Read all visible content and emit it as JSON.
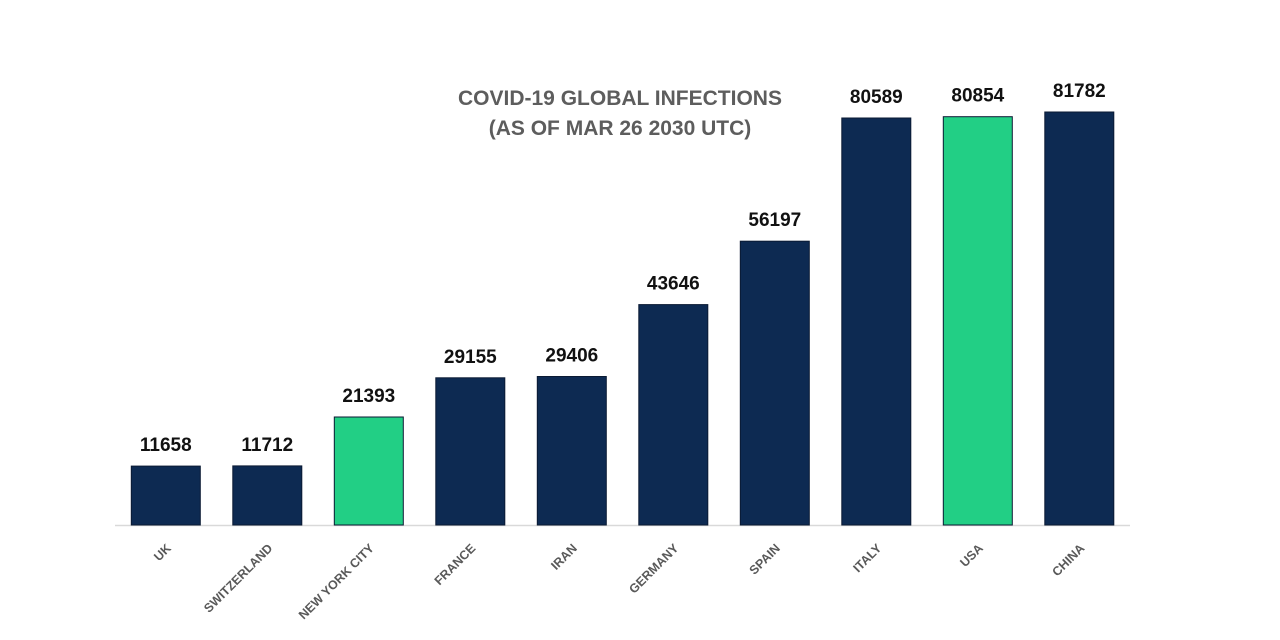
{
  "chart_data": {
    "type": "bar",
    "title": "COVID-19 GLOBAL INFECTIONS",
    "subtitle": "(AS OF MAR 26 2030 UTC)",
    "categories": [
      "UK",
      "SWITZERLAND",
      "NEW YORK CITY",
      "FRANCE",
      "IRAN",
      "GERMANY",
      "SPAIN",
      "ITALY",
      "USA",
      "CHINA"
    ],
    "values": [
      11658,
      11712,
      21393,
      29155,
      29406,
      43646,
      56197,
      80589,
      80854,
      81782
    ],
    "highlighted": [
      "NEW YORK CITY",
      "USA"
    ],
    "colors": {
      "bar": "#0d2a52",
      "highlight": "#22cf85",
      "label": "#111111",
      "axis_label": "#595959",
      "title": "#5d5d5d",
      "baseline": "#d9d9d9"
    },
    "ylim": [
      0,
      100000
    ],
    "grid": false,
    "legend": "none",
    "data_labels": true
  }
}
